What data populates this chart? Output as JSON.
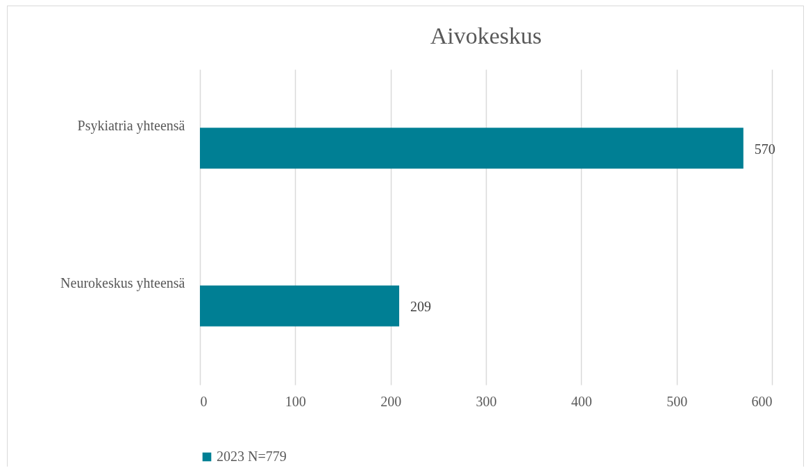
{
  "chart_data": {
    "type": "bar",
    "orientation": "horizontal",
    "title": "Aivokeskus",
    "categories": [
      "Psykiatria yhteensä",
      "Neurokeskus yhteensä"
    ],
    "series": [
      {
        "name": "2023 N=779",
        "color": "#007f94",
        "values": [
          570,
          209
        ]
      }
    ],
    "xlim": [
      0,
      600
    ],
    "xticks": [
      0,
      100,
      200,
      300,
      400,
      500,
      600
    ],
    "grid": "x",
    "legend": "bottom",
    "data_labels": true
  }
}
